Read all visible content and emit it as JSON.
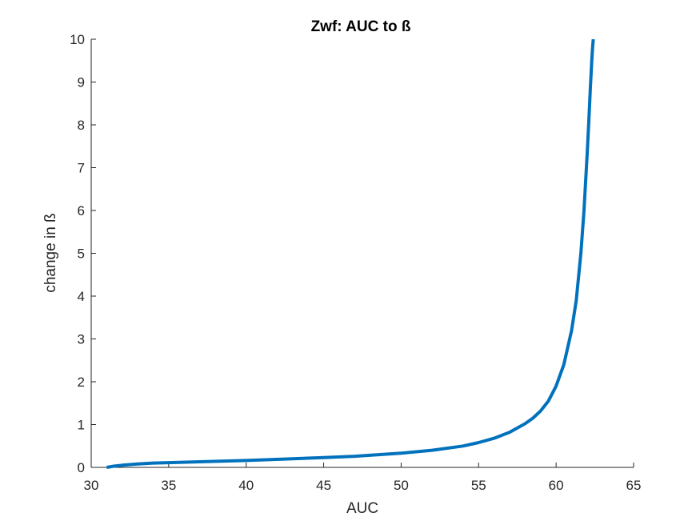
{
  "chart_data": {
    "type": "line",
    "title": "Zwf: AUC to ß",
    "xlabel": "AUC",
    "ylabel": "change in ß",
    "xlim": [
      30,
      65
    ],
    "ylim": [
      0,
      10
    ],
    "xticks": [
      30,
      35,
      40,
      45,
      50,
      55,
      60,
      65
    ],
    "yticks": [
      0,
      1,
      2,
      3,
      4,
      5,
      6,
      7,
      8,
      9,
      10
    ],
    "grid": false,
    "line_color": "#0072BD",
    "series": [
      {
        "x": [
          31.0,
          31.5,
          32,
          33,
          34,
          35,
          37,
          40,
          43,
          45,
          47,
          50,
          52,
          54,
          55,
          56,
          57,
          58,
          58.5,
          59,
          59.5,
          60,
          60.5,
          61,
          61.3,
          61.6,
          61.8,
          62.0,
          62.1,
          62.2,
          62.3,
          62.35,
          62.4
        ],
        "y": [
          0.0,
          0.03,
          0.05,
          0.08,
          0.1,
          0.11,
          0.13,
          0.16,
          0.2,
          0.23,
          0.26,
          0.33,
          0.4,
          0.5,
          0.58,
          0.68,
          0.82,
          1.02,
          1.15,
          1.32,
          1.55,
          1.9,
          2.4,
          3.2,
          3.9,
          5.0,
          6.0,
          7.3,
          8.0,
          8.8,
          9.5,
          9.8,
          10.0
        ]
      }
    ]
  }
}
